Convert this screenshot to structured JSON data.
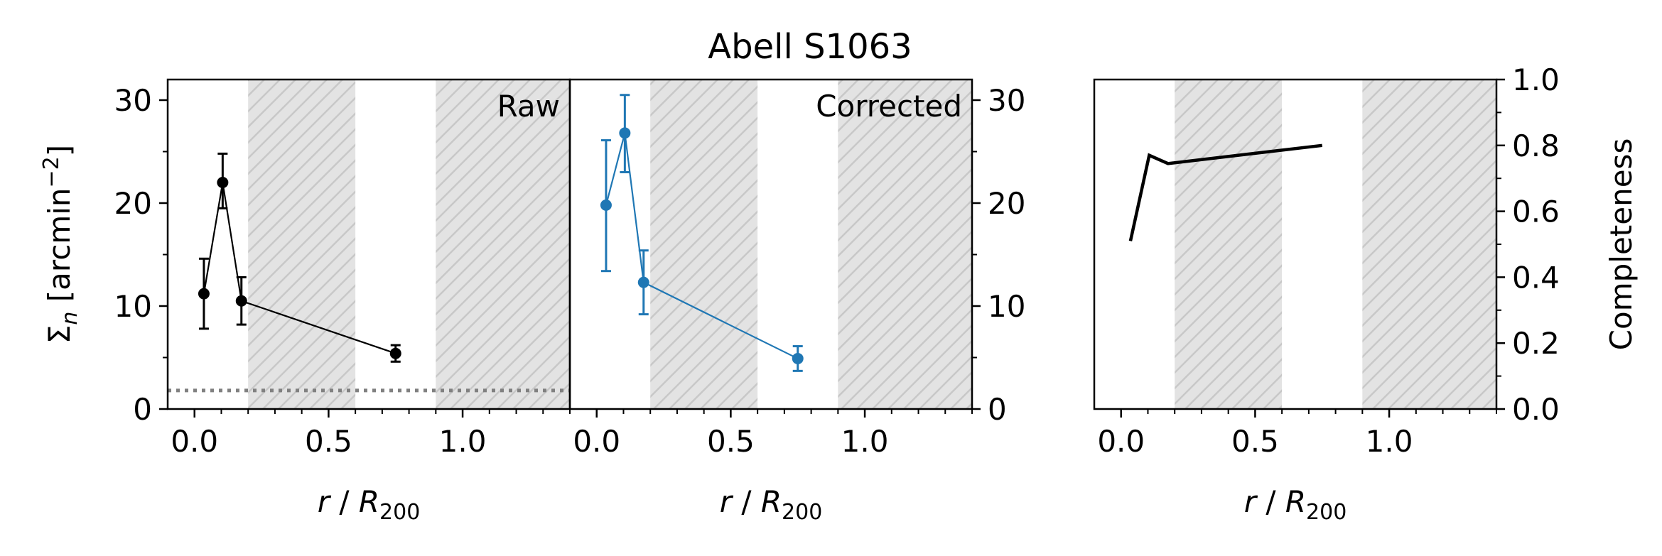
{
  "figure": {
    "title": "Abell S1063"
  },
  "chart_data": [
    {
      "type": "line",
      "panel_label": "Raw",
      "xlabel": "r / R200",
      "ylabel": "Σn [arcmin−2]",
      "xlim": [
        -0.1,
        1.4
      ],
      "ylim": [
        0,
        32
      ],
      "xticks": [
        "0.0",
        "0.5",
        "1.0"
      ],
      "yticks": [
        "0",
        "10",
        "20",
        "30"
      ],
      "grid": false,
      "shaded_bands": [
        [
          0.2,
          0.6
        ],
        [
          0.9,
          1.4
        ]
      ],
      "reference_line": {
        "y": 1.8,
        "style": "dotted",
        "color": "#808080"
      },
      "series": [
        {
          "color": "#000000",
          "x": [
            0.035,
            0.105,
            0.175,
            0.75
          ],
          "y": [
            11.2,
            22.0,
            10.5,
            5.4
          ],
          "yerr_low": [
            3.4,
            2.5,
            2.3,
            0.8
          ],
          "yerr_high": [
            3.4,
            2.8,
            2.3,
            0.8
          ]
        }
      ]
    },
    {
      "type": "line",
      "panel_label": "Corrected",
      "xlabel": "r / R200",
      "ylabel": "",
      "xlim": [
        -0.1,
        1.4
      ],
      "ylim": [
        0,
        32
      ],
      "xticks": [
        "0.0",
        "0.5",
        "1.0"
      ],
      "yticks": [
        "0",
        "10",
        "20",
        "30"
      ],
      "grid": false,
      "shaded_bands": [
        [
          0.2,
          0.6
        ],
        [
          0.9,
          1.4
        ]
      ],
      "series": [
        {
          "color": "#1f77b4",
          "x": [
            0.035,
            0.105,
            0.175,
            0.75
          ],
          "y": [
            19.8,
            26.8,
            12.3,
            4.9
          ],
          "yerr_low": [
            6.4,
            3.8,
            3.1,
            1.2
          ],
          "yerr_high": [
            6.3,
            3.7,
            3.1,
            1.2
          ]
        }
      ]
    },
    {
      "type": "line",
      "panel_label": "",
      "xlabel": "r / R200",
      "ylabel": "Completeness",
      "xlim": [
        -0.1,
        1.4
      ],
      "ylim": [
        0,
        1.0
      ],
      "xticks": [
        "0.0",
        "0.5",
        "1.0"
      ],
      "yticks": [
        "0.0",
        "0.2",
        "0.4",
        "0.6",
        "0.8",
        "1.0"
      ],
      "grid": false,
      "shaded_bands": [
        [
          0.2,
          0.6
        ],
        [
          0.9,
          1.4
        ]
      ],
      "series": [
        {
          "color": "#000000",
          "x": [
            0.035,
            0.105,
            0.175,
            0.75
          ],
          "y": [
            0.51,
            0.77,
            0.745,
            0.8
          ]
        }
      ]
    }
  ]
}
